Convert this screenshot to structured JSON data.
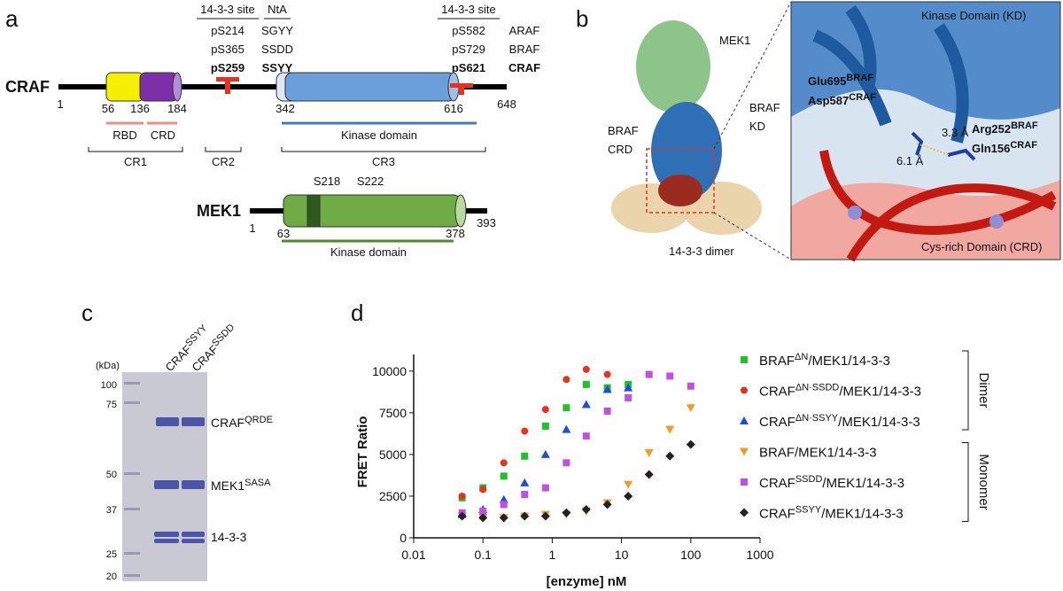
{
  "panel_a": {
    "label": "a",
    "columns": [
      {
        "header": "14-3-3 site",
        "rows": [
          "pS214",
          "pS365",
          "pS259"
        ]
      },
      {
        "header": "NtA",
        "rows": [
          "SGYY",
          "SSDD",
          "SSYY"
        ]
      },
      {
        "header": "14-3-3 site",
        "rows": [
          "pS582",
          "pS729",
          "pS621"
        ]
      },
      {
        "rows": [
          "ARAF",
          "BRAF",
          "CRAF"
        ]
      }
    ],
    "craf": {
      "name": "CRAF",
      "positions": [
        "1",
        "56",
        "136",
        "184",
        "342",
        "616",
        "648"
      ],
      "domains": [
        "RBD",
        "CRD",
        "Kinase domain"
      ],
      "regions": [
        "CR1",
        "CR2",
        "CR3"
      ]
    },
    "mek1": {
      "name": "MEK1",
      "sites": [
        "S218",
        "S222"
      ],
      "positions": [
        "1",
        "63",
        "378",
        "393"
      ],
      "domain": "Kinase domain"
    }
  },
  "panel_b": {
    "label": "b",
    "overview": [
      "MEK1",
      "BRAF",
      "KD",
      "BRAF",
      "CRD",
      "14-3-3 dimer"
    ],
    "zoom": {
      "top": "Kinase Domain (KD)",
      "bottom": "Cys-rich Domain (CRD)",
      "residues": [
        {
          "base": "Glu695",
          "sup": "BRAF"
        },
        {
          "base": "Asp587",
          "sup": "CRAF"
        },
        {
          "base": "Arg252",
          "sup": "BRAF"
        },
        {
          "base": "Gln156",
          "sup": "CRAF"
        }
      ],
      "distances": [
        "3.3 Å",
        "6.1 Å"
      ]
    }
  },
  "panel_c": {
    "label": "c",
    "unit": "(kDa)",
    "markers": [
      "100",
      "75",
      "50",
      "37",
      "25",
      "20"
    ],
    "lanes": [
      {
        "base": "CRAF",
        "sup": "SSYY"
      },
      {
        "base": "CRAF",
        "sup": "SSDD"
      }
    ],
    "bands": [
      {
        "base": "CRAF",
        "sup": "QRDE"
      },
      {
        "base": "MEK1",
        "sup": "SASA"
      },
      {
        "base": "14-3-3",
        "sup": ""
      }
    ]
  },
  "chart_data": {
    "type": "scatter",
    "label": "d",
    "x_label": "[enzyme] nM",
    "y_label": "FRET Ratio",
    "x": [
      0.05,
      0.1,
      0.2,
      0.4,
      0.8,
      1.6,
      3.1,
      6.25,
      12.5,
      25,
      50,
      100
    ],
    "xlim": [
      0.01,
      1000
    ],
    "xticks": [
      0.01,
      0.1,
      1,
      10,
      100,
      1000
    ],
    "xscale": "log",
    "ylim": [
      0,
      11000
    ],
    "yticks": [
      0,
      2500,
      5000,
      7500,
      10000
    ],
    "groups": [
      {
        "name": "Dimer",
        "series": [
          0,
          1,
          2
        ]
      },
      {
        "name": "Monomer",
        "series": [
          3,
          4,
          5
        ]
      }
    ],
    "series": [
      {
        "name": "BRAFΔN/MEK1/14-3-3",
        "sup": "ΔN",
        "color": "#20c228",
        "marker": "square",
        "values": [
          2400,
          3000,
          3700,
          4900,
          6700,
          7800,
          9200,
          9000,
          9200,
          null,
          null,
          null
        ]
      },
      {
        "name": "CRAFΔN·SSDD/MEK1/14-3-3",
        "sup": "ΔN·SSDD",
        "color": "#e8321d",
        "marker": "circle",
        "values": [
          2500,
          2900,
          4500,
          6400,
          7700,
          9500,
          10100,
          9800,
          null,
          null,
          null,
          null
        ]
      },
      {
        "name": "CRAFΔN·SSYY/MEK1/14-3-3",
        "sup": "ΔN·SSYY",
        "color": "#1c4ce0",
        "marker": "triangle-up",
        "values": [
          1400,
          1700,
          2300,
          3300,
          5000,
          6500,
          8000,
          8900,
          9000,
          null,
          null,
          null
        ]
      },
      {
        "name": "BRAF/MEK1/14-3-3",
        "sup": "",
        "color": "#f59a23",
        "marker": "triangle-down",
        "values": [
          1300,
          1200,
          1200,
          1300,
          1400,
          1400,
          1600,
          2100,
          3200,
          5100,
          6500,
          7800
        ]
      },
      {
        "name": "CRAFSSDD/MEK1/14-3-3",
        "sup": "SSDD",
        "color": "#c050e0",
        "marker": "square",
        "values": [
          1500,
          1600,
          2000,
          2600,
          3000,
          4500,
          6100,
          7600,
          8400,
          9800,
          9700,
          9100
        ]
      },
      {
        "name": "CRAFSSYY/MEK1/14-3-3",
        "sup": "SSYY",
        "color": "#222222",
        "marker": "diamond",
        "values": [
          1300,
          1200,
          1200,
          1300,
          1300,
          1500,
          1700,
          2000,
          2500,
          3800,
          4900,
          5600
        ]
      }
    ]
  }
}
